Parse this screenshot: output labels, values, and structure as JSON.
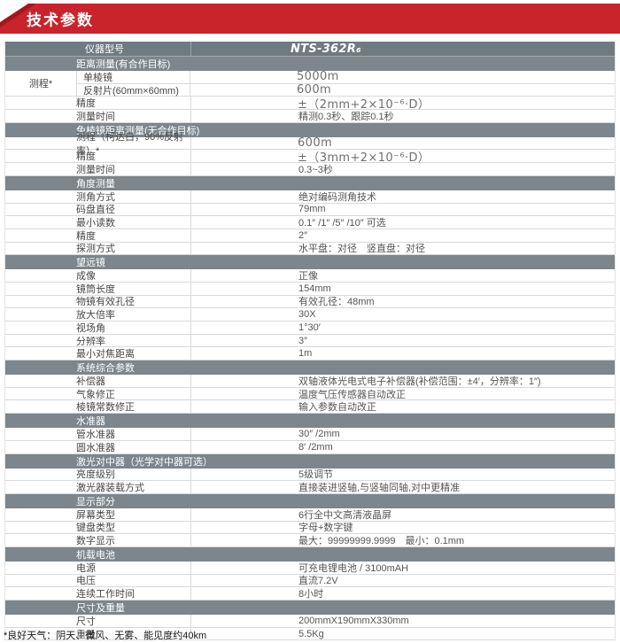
{
  "banner": {
    "title": "技术参数"
  },
  "header": {
    "model_label": "仪器型号",
    "model_value": "NTS-362R₆"
  },
  "sections": [
    {
      "title": "距离测量(有合作目标)",
      "rows": [
        {
          "group": "测程*",
          "subrows": [
            {
              "label": "单棱镜",
              "value": "5000m",
              "big": true
            },
            {
              "label": "反射片(60mm×60mm)",
              "value": "600m",
              "big": true
            }
          ]
        },
        {
          "label": "精度",
          "value": "±（2mm+2×10⁻⁶·D）",
          "big": true
        },
        {
          "label": "测量时间",
          "value": "精测0.3秒、跟踪0.1秒"
        }
      ]
    },
    {
      "title": "免棱镜距离测量(无合作目标)",
      "rows": [
        {
          "label": "测程（柯达白，90%反射率）*",
          "value": "600m",
          "big": true
        },
        {
          "label": "精度",
          "value": "±（3mm+2×10⁻⁶·D）",
          "big": true
        },
        {
          "label": "测量时间",
          "value": "0.3~3秒"
        }
      ]
    },
    {
      "title": "角度测量",
      "rows": [
        {
          "label": "测角方式",
          "value": "绝对编码测角技术"
        },
        {
          "label": "码盘直径",
          "value": "79mm"
        },
        {
          "label": "最小读数",
          "value": "0.1″ /1″ /5″ /10″ 可选"
        },
        {
          "label": "精度",
          "value": "2″"
        },
        {
          "label": "探测方式",
          "value": "水平盘：对径　竖直盘：对径"
        }
      ]
    },
    {
      "title": "望远镜",
      "rows": [
        {
          "label": "成像",
          "value": "正像"
        },
        {
          "label": "镜筒长度",
          "value": "154mm"
        },
        {
          "label": "物镜有效孔径",
          "value": "有效孔径：48mm"
        },
        {
          "label": "放大倍率",
          "value": "30X"
        },
        {
          "label": "视场角",
          "value": "1°30′"
        },
        {
          "label": "分辨率",
          "value": "3″"
        },
        {
          "label": "最小对焦距离",
          "value": "1m"
        }
      ]
    },
    {
      "title": "系统综合参数",
      "rows": [
        {
          "label": "补偿器",
          "value": "双轴液体光电式电子补偿器(补偿范围：±4′，分辨率：1″)"
        },
        {
          "label": "气象修正",
          "value": "温度气压传感器自动改正"
        },
        {
          "label": "棱镜常数修正",
          "value": "输入参数自动改正"
        }
      ]
    },
    {
      "title": "水准器",
      "rows": [
        {
          "label": "管水准器",
          "value": "30″ /2mm"
        },
        {
          "label": "圆水准器",
          "value": "8′ /2mm"
        }
      ]
    },
    {
      "title": "激光对中器（光学对中器可选）",
      "rows": [
        {
          "label": "亮度级别",
          "value": "5级调节"
        },
        {
          "label": "激光器装载方式",
          "value": "直接装进竖轴,与竖轴同轴,对中更精准"
        }
      ]
    },
    {
      "title": "显示部分",
      "rows": [
        {
          "label": "屏幕类型",
          "value": "6行全中文高清液晶屏"
        },
        {
          "label": "键盘类型",
          "value": "字母+数字键"
        },
        {
          "label": "数字显示",
          "value": "最大：99999999.9999　最小：0.1mm"
        }
      ]
    },
    {
      "title": "机载电池",
      "rows": [
        {
          "label": "电源",
          "value": "可充电锂电池 / 3100mAH"
        },
        {
          "label": "电压",
          "value": "直流7.2V"
        },
        {
          "label": "连续工作时间",
          "value": "8小时"
        }
      ]
    },
    {
      "title": "尺寸及重量",
      "rows": [
        {
          "label": "尺寸",
          "value": "200mmX190mmX330mm"
        },
        {
          "label": "重量",
          "value": "5.5Kg"
        }
      ]
    }
  ],
  "footnote": "*良好天气：阴天、微风、无雾、能见度约40km",
  "colors": {
    "accent_red": "#c9232b",
    "header_gray": "#6f7a81",
    "section_gray": "#7c868c"
  }
}
